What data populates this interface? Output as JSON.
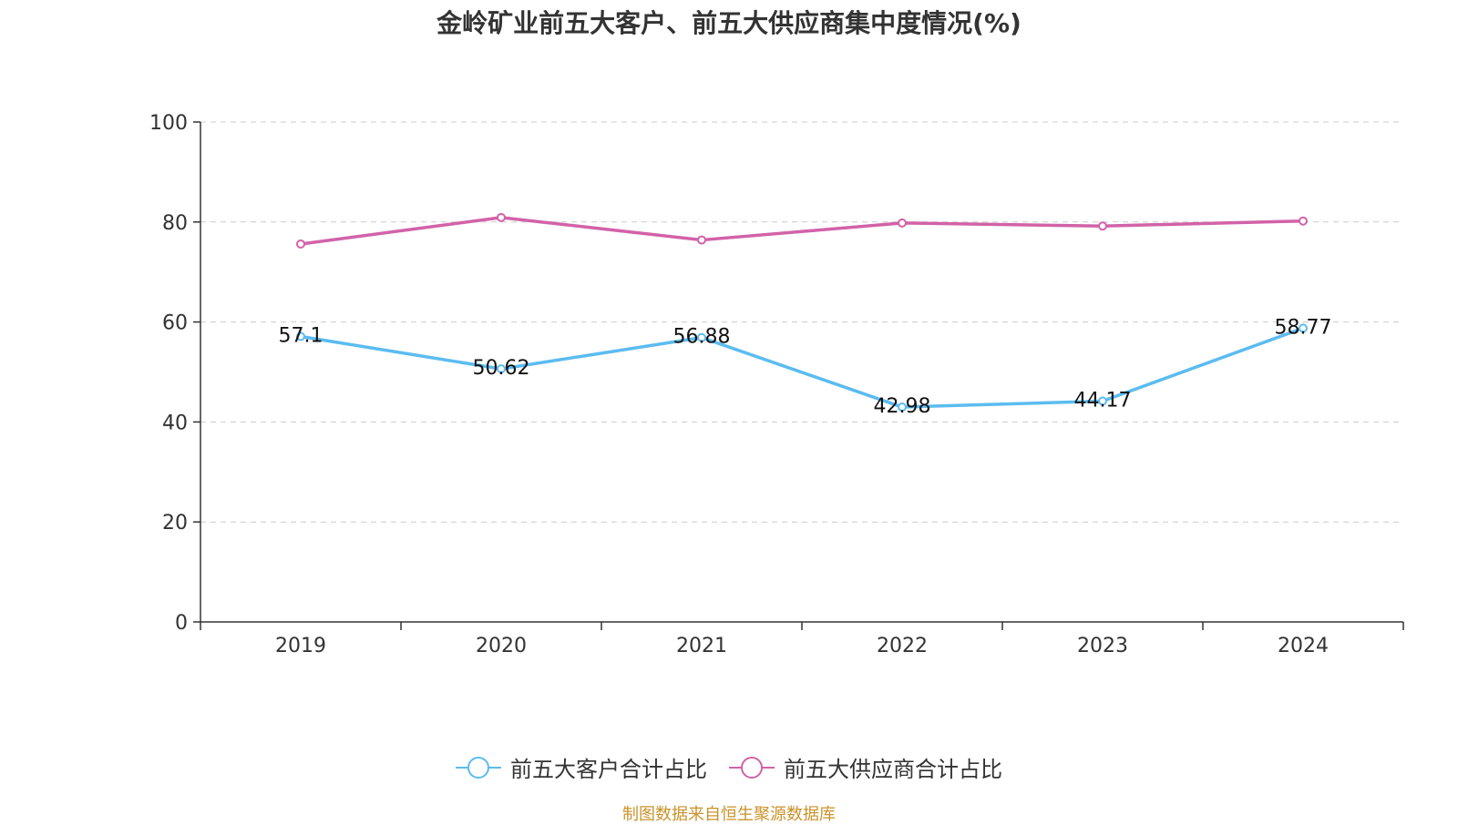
{
  "chart_data": {
    "type": "line",
    "title": "金岭矿业前五大客户、前五大供应商集中度情况(%)",
    "categories": [
      "2019",
      "2020",
      "2021",
      "2022",
      "2023",
      "2024"
    ],
    "ylim": [
      0,
      100
    ],
    "yticks": [
      0,
      20,
      40,
      60,
      80,
      100
    ],
    "grid": true,
    "legend_position": "bottom",
    "series": [
      {
        "name": "前五大客户合计占比",
        "color": "#5bbcf0",
        "values": [
          57.1,
          50.62,
          56.88,
          42.98,
          44.17,
          58.77
        ],
        "labels": [
          "57.1",
          "50.62",
          "56.88",
          "42.98",
          "44.17",
          "58.77"
        ],
        "show_labels": true
      },
      {
        "name": "前五大供应商合计占比",
        "color": "#d262a8",
        "values": [
          75.6,
          80.9,
          76.4,
          79.8,
          79.2,
          80.2
        ],
        "show_labels": false
      }
    ]
  },
  "source_note": "制图数据来自恒生聚源数据库",
  "colors": {
    "source_note": "#c9932b",
    "axis": "#333333",
    "grid": "#cccccc"
  }
}
